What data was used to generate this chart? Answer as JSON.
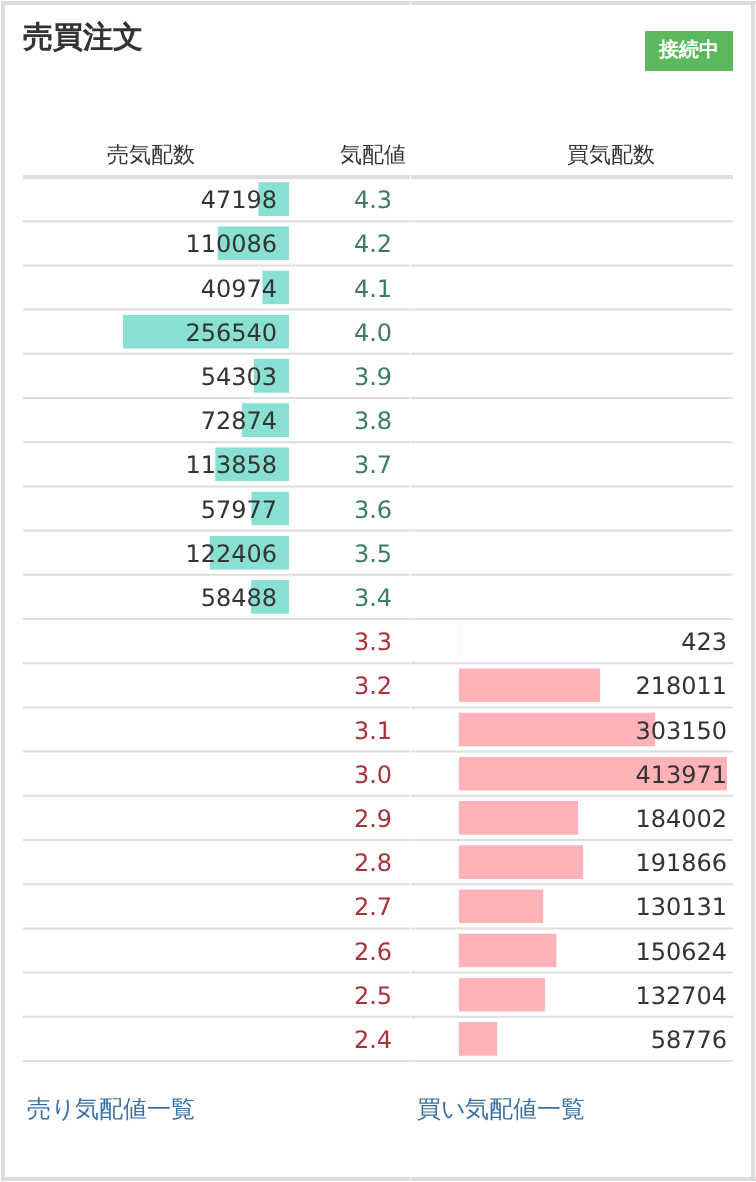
{
  "chart_data": [
    {
      "type": "bar",
      "orientation": "horizontal",
      "title": "売買注文",
      "ylabel": "気配値",
      "categories": [
        "4.3",
        "4.2",
        "4.1",
        "4.0",
        "3.9",
        "3.8",
        "3.7",
        "3.6",
        "3.5",
        "3.4",
        "3.3",
        "3.2",
        "3.1",
        "3.0",
        "2.9",
        "2.8",
        "2.7",
        "2.6",
        "2.5",
        "2.4"
      ],
      "series": [
        {
          "name": "売気配数",
          "color": "#88e0d2",
          "values": [
            47198,
            110086,
            40974,
            256540,
            54303,
            72874,
            113858,
            57977,
            122406,
            58488,
            null,
            null,
            null,
            null,
            null,
            null,
            null,
            null,
            null,
            null
          ]
        }
      ],
      "data_labels": true,
      "grid": "y",
      "annotations": [
        "売り気配値一覧"
      ]
    },
    {
      "type": "bar",
      "orientation": "horizontal",
      "tick_labels": false,
      "categories": [
        "4.3",
        "4.2",
        "4.1",
        "4.0",
        "3.9",
        "3.8",
        "3.7",
        "3.6",
        "3.5",
        "3.4",
        "3.3",
        "3.2",
        "3.1",
        "3.0",
        "2.9",
        "2.8",
        "2.7",
        "2.6",
        "2.5",
        "2.4"
      ],
      "series": [
        {
          "name": "買気配数",
          "color": "#ffb3b8",
          "values": [
            null,
            null,
            null,
            null,
            null,
            null,
            null,
            null,
            null,
            null,
            423,
            218011,
            303150,
            413971,
            184002,
            191866,
            130131,
            150624,
            132704,
            58776
          ]
        }
      ],
      "data_labels": true,
      "grid": "y",
      "annotations": [
        "接続中",
        "買い気配値一覧"
      ]
    }
  ]
}
